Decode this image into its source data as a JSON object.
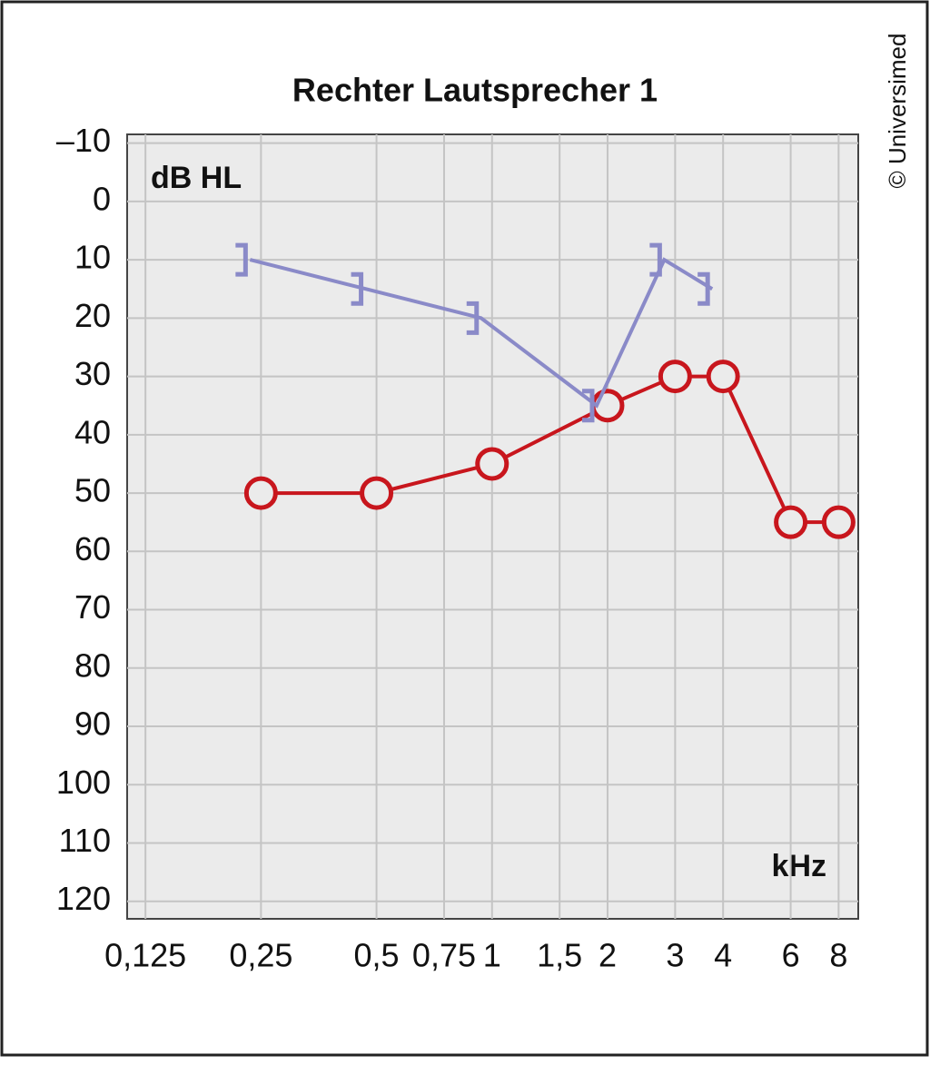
{
  "chart_data": {
    "type": "line",
    "title": "Rechter Lautsprecher 1",
    "y_label": "dB HL",
    "x_label": "kHz",
    "copyright": "© Universimed",
    "log_x": true,
    "invert_y": true,
    "grid": true,
    "xlim": [
      0.112,
      9
    ],
    "ylim": [
      -11.5,
      123
    ],
    "xticks": [
      {
        "value": 0.125,
        "label": "0,125"
      },
      {
        "value": 0.25,
        "label": "0,25"
      },
      {
        "value": 0.5,
        "label": "0,5"
      },
      {
        "value": 0.75,
        "label": "0,75"
      },
      1,
      {
        "value": 1.5,
        "label": "1,5"
      },
      2,
      3,
      4,
      6,
      8
    ],
    "yticks": [
      {
        "value": -10,
        "label": "–10"
      },
      0,
      10,
      20,
      30,
      40,
      50,
      60,
      70,
      80,
      90,
      100,
      110,
      120
    ],
    "series": [
      {
        "color": "#c8161d",
        "marker": "circle",
        "x": [
          0.25,
          0.5,
          1,
          2,
          3,
          4,
          6,
          8
        ],
        "values": [
          50,
          50,
          45,
          35,
          30,
          30,
          55,
          55
        ]
      },
      {
        "color": "#8a8ac8",
        "marker": "bracket",
        "x": [
          0.25,
          0.5,
          1,
          2,
          3,
          4
        ],
        "values": [
          10,
          15,
          20,
          35,
          10,
          15
        ]
      }
    ]
  }
}
